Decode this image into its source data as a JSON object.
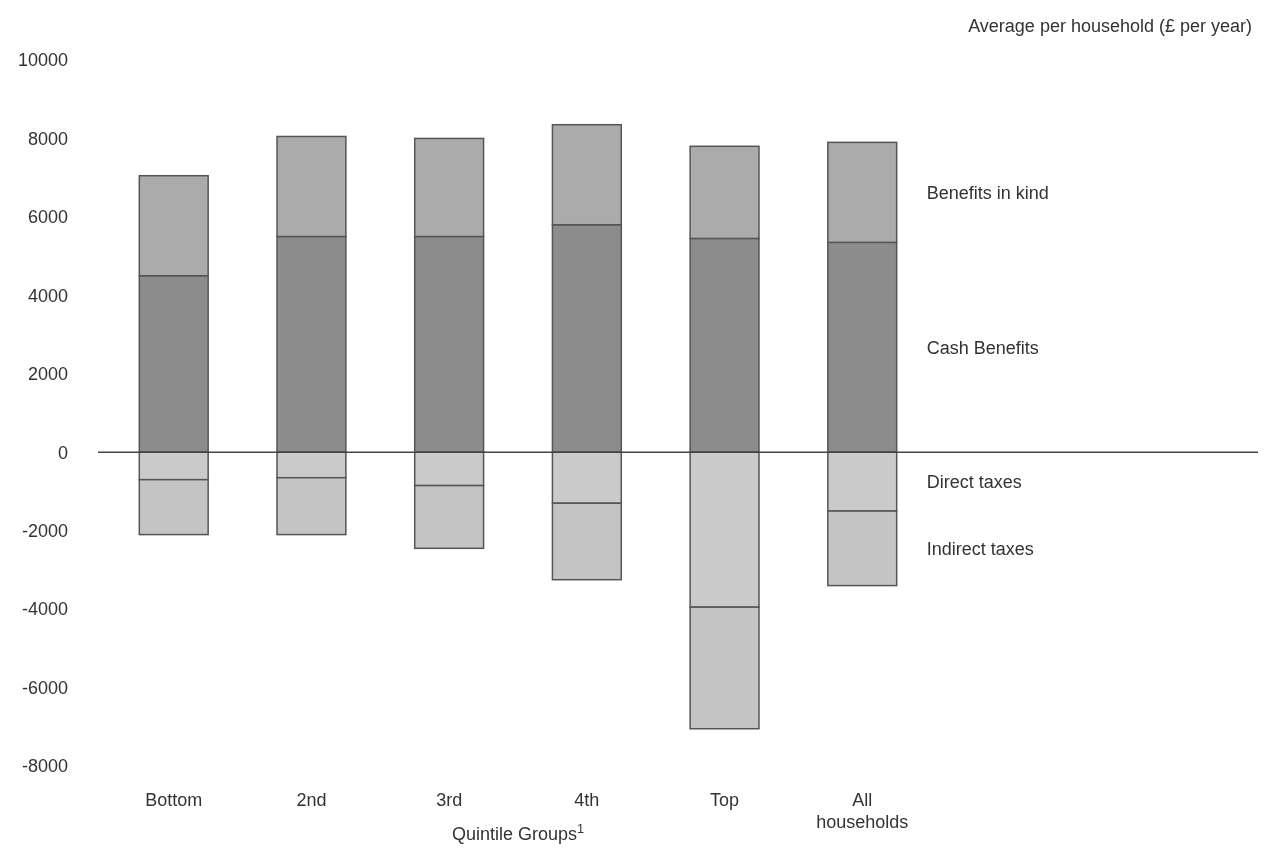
{
  "chart_data": {
    "type": "bar",
    "stacked": true,
    "ylabel": "Average per household (£ per year)",
    "xlabel": "Quintile Groups$^{1}$",
    "categories": [
      "Bottom",
      "2nd",
      "3rd",
      "4th",
      "Top",
      "All households"
    ],
    "series": [
      {
        "name": "Cash Benefits",
        "color": "#8c8c8c",
        "values": [
          4500,
          5500,
          5500,
          5800,
          5450,
          5350
        ]
      },
      {
        "name": "Benefits in kind",
        "color": "#ababab",
        "values": [
          2550,
          2550,
          2500,
          2550,
          2350,
          2550
        ]
      },
      {
        "name": "Direct taxes",
        "color": "#cacaca",
        "values": [
          -700,
          -650,
          -850,
          -1300,
          -3950,
          -1500
        ]
      },
      {
        "name": "Indirect taxes",
        "color": "#c4c4c4",
        "values": [
          -1400,
          -1450,
          -1600,
          -1950,
          -3100,
          -1900
        ]
      }
    ],
    "ylim": [
      -8000,
      10000
    ],
    "yticks": [
      -8000,
      -6000,
      -4000,
      -2000,
      0,
      2000,
      4000,
      6000,
      8000,
      10000
    ]
  }
}
